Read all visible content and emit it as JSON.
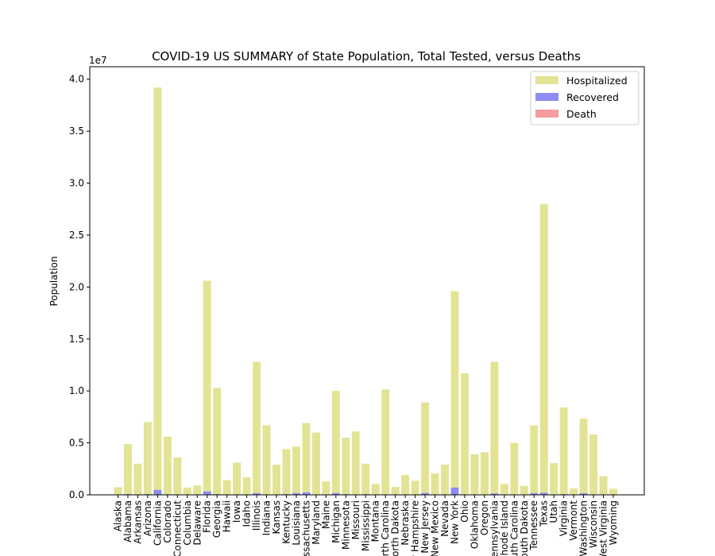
{
  "chart_data": {
    "type": "bar",
    "title": "COVID-19 US SUMMARY of State Population, Total Tested, versus Deaths",
    "xlabel": "",
    "ylabel": "Population",
    "y_offset_label": "1e7",
    "ylim": [
      0,
      41200000
    ],
    "yticks": [
      0,
      5000000,
      10000000,
      15000000,
      20000000,
      25000000,
      30000000,
      35000000,
      40000000
    ],
    "ytick_labels": [
      "0.0",
      "0.5",
      "1.0",
      "1.5",
      "2.0",
      "2.5",
      "3.0",
      "3.5",
      "4.0"
    ],
    "legend_position": "top-right",
    "categories": [
      "Alaska",
      "Alabama",
      "Arkansas",
      "Arizona",
      "California",
      "Colorado",
      "Connecticut",
      "Columbia",
      "Delaware",
      "Florida",
      "Georgia",
      "Hawaii",
      "Iowa",
      "Idaho",
      "Illinois",
      "Indiana",
      "Kansas",
      "Kentucky",
      "Louisiana",
      "Massachusetts",
      "Maryland",
      "Maine",
      "Michigan",
      "Minnesota",
      "Missouri",
      "Mississippi",
      "Montana",
      "North Carolina",
      "North Dakota",
      "Nebraska",
      "New Hampshire",
      "New Jersey",
      "New Mexico",
      "Nevada",
      "New York",
      "Ohio",
      "Oklahoma",
      "Oregon",
      "Pennsylvania",
      "Rhode Island",
      "South Carolina",
      "South Dakota",
      "Tennessee",
      "Texas",
      "Utah",
      "Virginia",
      "Vermont",
      "Washington",
      "Wisconsin",
      "West Virginia",
      "Wyoming"
    ],
    "series": [
      {
        "name": "Hospitalized",
        "color": "#e3e395",
        "values": [
          730000,
          4900000,
          3000000,
          7000000,
          39200000,
          5600000,
          3600000,
          700000,
          900000,
          20600000,
          10300000,
          1400000,
          3100000,
          1700000,
          12800000,
          6700000,
          2900000,
          4400000,
          4650000,
          6900000,
          6000000,
          1300000,
          10000000,
          5500000,
          6100000,
          3000000,
          1050000,
          10150000,
          760000,
          1900000,
          1350000,
          8900000,
          2050000,
          2900000,
          19600000,
          11700000,
          3900000,
          4100000,
          12800000,
          1050000,
          5000000,
          860000,
          6700000,
          28000000,
          3050000,
          8400000,
          620000,
          7350000,
          5800000,
          1800000,
          580000
        ]
      },
      {
        "name": "Recovered",
        "color": "#8c8cf3",
        "values": [
          10000,
          60000,
          40000,
          60000,
          470000,
          30000,
          20000,
          10000,
          20000,
          320000,
          60000,
          10000,
          40000,
          20000,
          170000,
          40000,
          20000,
          60000,
          170000,
          230000,
          40000,
          10000,
          170000,
          60000,
          30000,
          60000,
          10000,
          30000,
          10000,
          30000,
          20000,
          180000,
          30000,
          20000,
          700000,
          40000,
          20000,
          20000,
          130000,
          40000,
          30000,
          20000,
          160000,
          200000,
          40000,
          60000,
          10000,
          140000,
          40000,
          10000,
          10000
        ]
      },
      {
        "name": "Death",
        "color": "#f59d9d",
        "values": [
          0,
          2000,
          1000,
          2000,
          30000,
          2000,
          4000,
          500,
          700,
          16000,
          4000,
          100,
          1000,
          500,
          12000,
          3000,
          500,
          1000,
          5000,
          9000,
          3500,
          200,
          7000,
          1800,
          2000,
          2000,
          100,
          4000,
          200,
          400,
          400,
          16000,
          800,
          1000,
          32000,
          4500,
          500,
          300,
          9000,
          1000,
          2000,
          200,
          2000,
          15000,
          300,
          3000,
          60,
          2000,
          1000,
          200,
          30
        ]
      }
    ]
  }
}
